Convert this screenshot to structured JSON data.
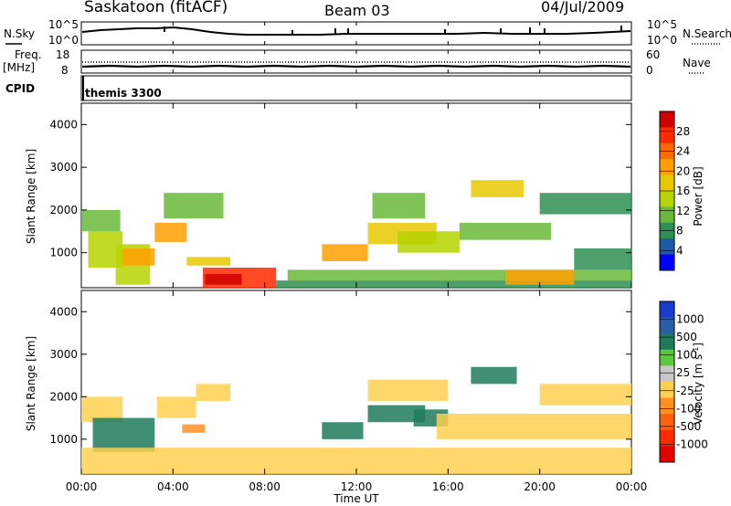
{
  "header": {
    "station": "Saskatoon (fitACF)",
    "beam": "Beam 03",
    "date": "04/Jul/2009"
  },
  "strip_labels": {
    "nsky": "N.Sky",
    "nsearch": "N.Search",
    "freq": "Freq.",
    "mhz": "[MHz]",
    "nave": "Nave",
    "cpid": "CPID",
    "nsky_ticks": [
      "10^5",
      "10^0"
    ],
    "nsearch_ticks": [
      "10^5",
      "10^0"
    ],
    "freq_ticks": [
      "18",
      "8"
    ],
    "nave_ticks": [
      "60",
      "0"
    ],
    "cpid_program": "themis 3300"
  },
  "x_axis": {
    "label": "Time UT",
    "ticks": [
      "00:00",
      "04:00",
      "08:00",
      "12:00",
      "16:00",
      "20:00",
      "00:00"
    ]
  },
  "power_colorbar": {
    "label": "Power [dB]",
    "ticks": [
      "28",
      "24",
      "20",
      "16",
      "12",
      "8",
      "4"
    ],
    "colors": [
      "#d00000",
      "#ff2a00",
      "#ff6a00",
      "#ffa000",
      "#e8c800",
      "#b6d400",
      "#6ab83a",
      "#2e8f52",
      "#1f5aa8",
      "#0000ff"
    ]
  },
  "velocity_colorbar": {
    "label": "Velocity [m s^-1]",
    "ticks": [
      "1000",
      "500",
      "100",
      "25",
      "-25",
      "-100",
      "-500",
      "-1000"
    ],
    "colors": [
      "#1a3ccc",
      "#2a5fa8",
      "#1f7a5a",
      "#5ac83a",
      "#c8c8c8",
      "#ffd050",
      "#ff9020",
      "#ff6010",
      "#ff2a00",
      "#e00000"
    ]
  },
  "chart_data": [
    {
      "type": "line",
      "name": "N.Sky / N.Search",
      "x_range_hours": [
        0,
        24
      ],
      "y_scale": "log",
      "ylim": [
        1,
        100000
      ]
    },
    {
      "type": "line",
      "name": "Freq / Nave",
      "ylabel": "Freq. [MHz]",
      "ylim_freq": [
        8,
        18
      ],
      "ylim_nave": [
        0,
        60
      ],
      "freq_value_mhz": 10.5
    },
    {
      "type": "heatmap",
      "title": "",
      "xlabel": "Time UT",
      "ylabel": "Slant Range [km]",
      "xlim_hours": [
        0,
        24
      ],
      "ylim_km": [
        180,
        4500
      ],
      "yticks": [
        1000,
        2000,
        3000,
        4000
      ],
      "colorbar": "Power [dB]",
      "patches": [
        {
          "t0": 0.0,
          "t1": 1.7,
          "r0": 1500,
          "r1": 2000,
          "level": 4
        },
        {
          "t0": 0.3,
          "t1": 1.8,
          "r0": 650,
          "r1": 1500,
          "level": 5
        },
        {
          "t0": 1.5,
          "t1": 3.0,
          "r0": 250,
          "r1": 1200,
          "level": 5
        },
        {
          "t0": 1.8,
          "t1": 3.2,
          "r0": 700,
          "r1": 1100,
          "level": 7
        },
        {
          "t0": 3.2,
          "t1": 4.6,
          "r0": 1250,
          "r1": 1700,
          "level": 7
        },
        {
          "t0": 3.6,
          "t1": 6.2,
          "r0": 1800,
          "r1": 2400,
          "level": 4
        },
        {
          "t0": 4.6,
          "t1": 6.5,
          "r0": 700,
          "r1": 900,
          "level": 6
        },
        {
          "t0": 5.3,
          "t1": 8.5,
          "r0": 180,
          "r1": 650,
          "level": 9
        },
        {
          "t0": 5.4,
          "t1": 7.0,
          "r0": 250,
          "r1": 500,
          "level": 10
        },
        {
          "t0": 8.5,
          "t1": 24.0,
          "r0": 180,
          "r1": 350,
          "level": 3
        },
        {
          "t0": 9.0,
          "t1": 24.0,
          "r0": 350,
          "r1": 600,
          "level": 4
        },
        {
          "t0": 10.5,
          "t1": 12.5,
          "r0": 800,
          "r1": 1200,
          "level": 7
        },
        {
          "t0": 12.5,
          "t1": 15.5,
          "r0": 1200,
          "r1": 1700,
          "level": 6
        },
        {
          "t0": 12.7,
          "t1": 15.0,
          "r0": 1800,
          "r1": 2400,
          "level": 4
        },
        {
          "t0": 13.8,
          "t1": 16.5,
          "r0": 1000,
          "r1": 1500,
          "level": 5
        },
        {
          "t0": 16.5,
          "t1": 20.5,
          "r0": 1300,
          "r1": 1700,
          "level": 4
        },
        {
          "t0": 17.0,
          "t1": 19.3,
          "r0": 2300,
          "r1": 2700,
          "level": 6
        },
        {
          "t0": 18.5,
          "t1": 21.5,
          "r0": 250,
          "r1": 600,
          "level": 7
        },
        {
          "t0": 20.0,
          "t1": 24.0,
          "r0": 1900,
          "r1": 2400,
          "level": 3
        },
        {
          "t0": 21.5,
          "t1": 24.0,
          "r0": 600,
          "r1": 1100,
          "level": 3
        }
      ]
    },
    {
      "type": "heatmap",
      "title": "",
      "xlabel": "Time UT",
      "ylabel": "Slant Range [km]",
      "xlim_hours": [
        0,
        24
      ],
      "ylim_km": [
        180,
        4500
      ],
      "yticks": [
        1000,
        2000,
        3000,
        4000
      ],
      "colorbar": "Velocity [m s^-1]",
      "patches": [
        {
          "t0": 0.0,
          "t1": 1.8,
          "r0": 1400,
          "r1": 2000,
          "level": 5
        },
        {
          "t0": 0.5,
          "t1": 3.2,
          "r0": 700,
          "r1": 1500,
          "level": 8
        },
        {
          "t0": 0.0,
          "t1": 24.0,
          "r0": 180,
          "r1": 500,
          "level": 5
        },
        {
          "t0": 0.0,
          "t1": 24.0,
          "r0": 500,
          "r1": 800,
          "level": 5
        },
        {
          "t0": 3.3,
          "t1": 5.0,
          "r0": 1500,
          "r1": 2000,
          "level": 5
        },
        {
          "t0": 4.4,
          "t1": 5.4,
          "r0": 1150,
          "r1": 1350,
          "level": 4
        },
        {
          "t0": 5.0,
          "t1": 6.5,
          "r0": 1900,
          "r1": 2300,
          "level": 5
        },
        {
          "t0": 10.5,
          "t1": 12.3,
          "r0": 1000,
          "r1": 1400,
          "level": 8
        },
        {
          "t0": 12.5,
          "t1": 15.0,
          "r0": 1400,
          "r1": 1800,
          "level": 8
        },
        {
          "t0": 12.5,
          "t1": 16.0,
          "r0": 1900,
          "r1": 2400,
          "level": 5
        },
        {
          "t0": 14.5,
          "t1": 16.0,
          "r0": 1300,
          "r1": 1700,
          "level": 8
        },
        {
          "t0": 15.5,
          "t1": 24.0,
          "r0": 1000,
          "r1": 1600,
          "level": 5
        },
        {
          "t0": 17.0,
          "t1": 19.0,
          "r0": 2300,
          "r1": 2700,
          "level": 8
        },
        {
          "t0": 20.0,
          "t1": 24.0,
          "r0": 1800,
          "r1": 2300,
          "level": 5
        }
      ]
    }
  ]
}
